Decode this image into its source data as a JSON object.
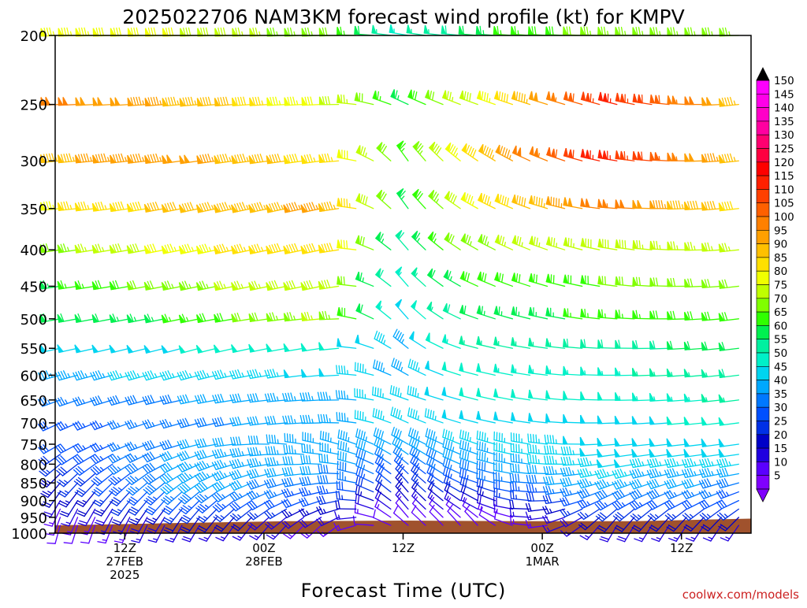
{
  "page": {
    "credit": "coolwx.com/models",
    "credit_color": "#cc2222"
  },
  "chart_data": {
    "type": "wind-barb-time-height",
    "title": "2025022706 NAM3KM forecast wind profile (kt) for KMPV",
    "xlabel": "Forecast Time (UTC)",
    "ylabel": "",
    "x_unit": "forecast hour",
    "xlim": [
      0,
      60
    ],
    "y_unit": "hPa",
    "ylim": [
      1000,
      200
    ],
    "y_scale": "log",
    "y_ticks": [
      200,
      250,
      300,
      350,
      400,
      450,
      500,
      550,
      600,
      650,
      700,
      750,
      800,
      850,
      900,
      950,
      1000
    ],
    "x_ticks": [
      {
        "x": 6,
        "lines": [
          "12Z",
          "27FEB",
          "2025"
        ]
      },
      {
        "x": 18,
        "lines": [
          "00Z",
          "28FEB"
        ]
      },
      {
        "x": 30,
        "lines": [
          "12Z"
        ]
      },
      {
        "x": 42,
        "lines": [
          "00Z",
          "1MAR"
        ]
      },
      {
        "x": 54,
        "lines": [
          "12Z"
        ]
      }
    ],
    "surface_color": "#a0522d",
    "surface_pressure": [
      {
        "x": 0,
        "p": 975
      },
      {
        "x": 10,
        "p": 968
      },
      {
        "x": 20,
        "p": 962
      },
      {
        "x": 30,
        "p": 960
      },
      {
        "x": 40,
        "p": 962
      },
      {
        "x": 50,
        "p": 962
      },
      {
        "x": 60,
        "p": 954
      }
    ],
    "colorbar": {
      "levels": [
        5,
        10,
        15,
        20,
        25,
        30,
        35,
        40,
        45,
        50,
        55,
        60,
        65,
        70,
        75,
        80,
        85,
        90,
        95,
        100,
        105,
        110,
        115,
        120,
        125,
        130,
        135,
        140,
        145,
        150
      ],
      "colors": [
        "#8000ff",
        "#5a00ff",
        "#2000e0",
        "#0000c8",
        "#0030e6",
        "#0050ff",
        "#0078ff",
        "#00a8ff",
        "#00d4f0",
        "#00f0c8",
        "#00f0a0",
        "#00f050",
        "#30ff00",
        "#80ff00",
        "#c0ff00",
        "#f0ff00",
        "#ffe000",
        "#ffc000",
        "#ffa000",
        "#ff8000",
        "#ff6000",
        "#ff4000",
        "#ff2000",
        "#ff0000",
        "#ff0040",
        "#ff0070",
        "#ff00a0",
        "#ff00c8",
        "#ff00e8",
        "#ff00ff"
      ],
      "extend_max_color": "#000000",
      "extend_min_color": "#8000ff"
    },
    "levels_hpa": [
      1000,
      975,
      950,
      925,
      900,
      875,
      850,
      825,
      800,
      775,
      750,
      700,
      650,
      600,
      550,
      500,
      450,
      400,
      350,
      300,
      250,
      200
    ],
    "profiles": {
      "1000": [
        {
          "x": 0,
          "spd": 8,
          "dir": 190
        },
        {
          "x": 12,
          "spd": 14,
          "dir": 205
        },
        {
          "x": 24,
          "spd": 12,
          "dir": 220
        },
        {
          "x": 30,
          "spd": 8,
          "dir": 300
        },
        {
          "x": 36,
          "spd": 8,
          "dir": 320
        },
        {
          "x": 48,
          "spd": 14,
          "dir": 200
        },
        {
          "x": 60,
          "spd": 12,
          "dir": 210
        }
      ],
      "975": [
        {
          "x": 0,
          "spd": 10,
          "dir": 195
        },
        {
          "x": 12,
          "spd": 18,
          "dir": 210
        },
        {
          "x": 24,
          "spd": 14,
          "dir": 230
        },
        {
          "x": 30,
          "spd": 10,
          "dir": 310
        },
        {
          "x": 36,
          "spd": 10,
          "dir": 320
        },
        {
          "x": 48,
          "spd": 18,
          "dir": 210
        },
        {
          "x": 60,
          "spd": 16,
          "dir": 215
        }
      ],
      "950": [
        {
          "x": 0,
          "spd": 12,
          "dir": 200
        },
        {
          "x": 12,
          "spd": 22,
          "dir": 215
        },
        {
          "x": 24,
          "spd": 18,
          "dir": 240
        },
        {
          "x": 30,
          "spd": 12,
          "dir": 320
        },
        {
          "x": 36,
          "spd": 12,
          "dir": 310
        },
        {
          "x": 48,
          "spd": 22,
          "dir": 220
        },
        {
          "x": 60,
          "spd": 20,
          "dir": 225
        }
      ],
      "925": [
        {
          "x": 0,
          "spd": 14,
          "dir": 205
        },
        {
          "x": 12,
          "spd": 28,
          "dir": 220
        },
        {
          "x": 24,
          "spd": 24,
          "dir": 250
        },
        {
          "x": 30,
          "spd": 16,
          "dir": 320
        },
        {
          "x": 36,
          "spd": 16,
          "dir": 300
        },
        {
          "x": 48,
          "spd": 28,
          "dir": 230
        },
        {
          "x": 60,
          "spd": 26,
          "dir": 235
        }
      ],
      "900": [
        {
          "x": 0,
          "spd": 18,
          "dir": 210
        },
        {
          "x": 12,
          "spd": 34,
          "dir": 225
        },
        {
          "x": 24,
          "spd": 30,
          "dir": 255
        },
        {
          "x": 30,
          "spd": 20,
          "dir": 320
        },
        {
          "x": 36,
          "spd": 22,
          "dir": 300
        },
        {
          "x": 48,
          "spd": 34,
          "dir": 240
        },
        {
          "x": 60,
          "spd": 30,
          "dir": 245
        }
      ],
      "875": [
        {
          "x": 0,
          "spd": 20,
          "dir": 215
        },
        {
          "x": 12,
          "spd": 38,
          "dir": 230
        },
        {
          "x": 24,
          "spd": 34,
          "dir": 260
        },
        {
          "x": 30,
          "spd": 24,
          "dir": 320
        },
        {
          "x": 36,
          "spd": 28,
          "dir": 295
        },
        {
          "x": 48,
          "spd": 40,
          "dir": 245
        },
        {
          "x": 60,
          "spd": 34,
          "dir": 250
        }
      ],
      "850": [
        {
          "x": 0,
          "spd": 22,
          "dir": 220
        },
        {
          "x": 12,
          "spd": 42,
          "dir": 235
        },
        {
          "x": 24,
          "spd": 38,
          "dir": 265
        },
        {
          "x": 30,
          "spd": 28,
          "dir": 320
        },
        {
          "x": 36,
          "spd": 34,
          "dir": 290
        },
        {
          "x": 48,
          "spd": 44,
          "dir": 250
        },
        {
          "x": 60,
          "spd": 38,
          "dir": 255
        }
      ],
      "825": [
        {
          "x": 0,
          "spd": 24,
          "dir": 225
        },
        {
          "x": 12,
          "spd": 44,
          "dir": 240
        },
        {
          "x": 24,
          "spd": 40,
          "dir": 270
        },
        {
          "x": 30,
          "spd": 32,
          "dir": 315
        },
        {
          "x": 36,
          "spd": 38,
          "dir": 290
        },
        {
          "x": 48,
          "spd": 46,
          "dir": 255
        },
        {
          "x": 60,
          "spd": 42,
          "dir": 260
        }
      ],
      "800": [
        {
          "x": 0,
          "spd": 26,
          "dir": 230
        },
        {
          "x": 12,
          "spd": 44,
          "dir": 245
        },
        {
          "x": 24,
          "spd": 42,
          "dir": 275
        },
        {
          "x": 30,
          "spd": 36,
          "dir": 310
        },
        {
          "x": 36,
          "spd": 42,
          "dir": 290
        },
        {
          "x": 48,
          "spd": 48,
          "dir": 260
        },
        {
          "x": 60,
          "spd": 46,
          "dir": 260
        }
      ],
      "775": [
        {
          "x": 0,
          "spd": 28,
          "dir": 235
        },
        {
          "x": 12,
          "spd": 42,
          "dir": 250
        },
        {
          "x": 24,
          "spd": 44,
          "dir": 280
        },
        {
          "x": 30,
          "spd": 40,
          "dir": 305
        },
        {
          "x": 36,
          "spd": 44,
          "dir": 290
        },
        {
          "x": 48,
          "spd": 48,
          "dir": 262
        },
        {
          "x": 60,
          "spd": 48,
          "dir": 262
        }
      ],
      "750": [
        {
          "x": 0,
          "spd": 30,
          "dir": 240
        },
        {
          "x": 12,
          "spd": 40,
          "dir": 255
        },
        {
          "x": 24,
          "spd": 44,
          "dir": 285
        },
        {
          "x": 30,
          "spd": 42,
          "dir": 300
        },
        {
          "x": 36,
          "spd": 46,
          "dir": 290
        },
        {
          "x": 48,
          "spd": 48,
          "dir": 265
        },
        {
          "x": 60,
          "spd": 50,
          "dir": 262
        }
      ],
      "700": [
        {
          "x": 0,
          "spd": 32,
          "dir": 245
        },
        {
          "x": 12,
          "spd": 38,
          "dir": 255
        },
        {
          "x": 24,
          "spd": 44,
          "dir": 270
        },
        {
          "x": 30,
          "spd": 46,
          "dir": 295
        },
        {
          "x": 36,
          "spd": 48,
          "dir": 285
        },
        {
          "x": 48,
          "spd": 48,
          "dir": 268
        },
        {
          "x": 60,
          "spd": 52,
          "dir": 262
        }
      ],
      "650": [
        {
          "x": 0,
          "spd": 36,
          "dir": 250
        },
        {
          "x": 12,
          "spd": 40,
          "dir": 258
        },
        {
          "x": 24,
          "spd": 44,
          "dir": 268
        },
        {
          "x": 30,
          "spd": 46,
          "dir": 290
        },
        {
          "x": 36,
          "spd": 50,
          "dir": 285
        },
        {
          "x": 48,
          "spd": 52,
          "dir": 270
        },
        {
          "x": 60,
          "spd": 56,
          "dir": 262
        }
      ],
      "600": [
        {
          "x": 0,
          "spd": 44,
          "dir": 255
        },
        {
          "x": 12,
          "spd": 46,
          "dir": 255
        },
        {
          "x": 24,
          "spd": 48,
          "dir": 265
        },
        {
          "x": 30,
          "spd": 44,
          "dir": 300
        },
        {
          "x": 36,
          "spd": 52,
          "dir": 285
        },
        {
          "x": 48,
          "spd": 54,
          "dir": 270
        },
        {
          "x": 60,
          "spd": 58,
          "dir": 262
        }
      ],
      "550": [
        {
          "x": 0,
          "spd": 48,
          "dir": 258
        },
        {
          "x": 12,
          "spd": 50,
          "dir": 255
        },
        {
          "x": 24,
          "spd": 52,
          "dir": 262
        },
        {
          "x": 30,
          "spd": 44,
          "dir": 310
        },
        {
          "x": 36,
          "spd": 56,
          "dir": 285
        },
        {
          "x": 48,
          "spd": 58,
          "dir": 272
        },
        {
          "x": 60,
          "spd": 62,
          "dir": 262
        }
      ],
      "500": [
        {
          "x": 0,
          "spd": 60,
          "dir": 260
        },
        {
          "x": 12,
          "spd": 66,
          "dir": 258
        },
        {
          "x": 24,
          "spd": 76,
          "dir": 265
        },
        {
          "x": 30,
          "spd": 48,
          "dir": 320
        },
        {
          "x": 36,
          "spd": 62,
          "dir": 290
        },
        {
          "x": 48,
          "spd": 66,
          "dir": 275
        },
        {
          "x": 60,
          "spd": 70,
          "dir": 262
        }
      ],
      "450": [
        {
          "x": 0,
          "spd": 64,
          "dir": 262
        },
        {
          "x": 12,
          "spd": 74,
          "dir": 258
        },
        {
          "x": 24,
          "spd": 80,
          "dir": 258
        },
        {
          "x": 30,
          "spd": 52,
          "dir": 320
        },
        {
          "x": 36,
          "spd": 68,
          "dir": 295
        },
        {
          "x": 48,
          "spd": 70,
          "dir": 278
        },
        {
          "x": 60,
          "spd": 72,
          "dir": 262
        }
      ],
      "400": [
        {
          "x": 0,
          "spd": 72,
          "dir": 262
        },
        {
          "x": 12,
          "spd": 84,
          "dir": 258
        },
        {
          "x": 24,
          "spd": 90,
          "dir": 258
        },
        {
          "x": 30,
          "spd": 58,
          "dir": 320
        },
        {
          "x": 36,
          "spd": 74,
          "dir": 300
        },
        {
          "x": 48,
          "spd": 78,
          "dir": 280
        },
        {
          "x": 60,
          "spd": 76,
          "dir": 262
        }
      ],
      "350": [
        {
          "x": 0,
          "spd": 84,
          "dir": 265
        },
        {
          "x": 12,
          "spd": 92,
          "dir": 258
        },
        {
          "x": 24,
          "spd": 96,
          "dir": 258
        },
        {
          "x": 30,
          "spd": 64,
          "dir": 325
        },
        {
          "x": 36,
          "spd": 82,
          "dir": 300
        },
        {
          "x": 48,
          "spd": 104,
          "dir": 275
        },
        {
          "x": 60,
          "spd": 86,
          "dir": 262
        }
      ],
      "300": [
        {
          "x": 0,
          "spd": 94,
          "dir": 265
        },
        {
          "x": 12,
          "spd": 98,
          "dir": 262
        },
        {
          "x": 24,
          "spd": 86,
          "dir": 262
        },
        {
          "x": 30,
          "spd": 66,
          "dir": 325
        },
        {
          "x": 36,
          "spd": 88,
          "dir": 305
        },
        {
          "x": 48,
          "spd": 118,
          "dir": 280
        },
        {
          "x": 60,
          "spd": 90,
          "dir": 262
        }
      ],
      "250": [
        {
          "x": 0,
          "spd": 102,
          "dir": 268
        },
        {
          "x": 12,
          "spd": 94,
          "dir": 265
        },
        {
          "x": 24,
          "spd": 80,
          "dir": 268
        },
        {
          "x": 30,
          "spd": 64,
          "dir": 295
        },
        {
          "x": 36,
          "spd": 78,
          "dir": 290
        },
        {
          "x": 48,
          "spd": 118,
          "dir": 285
        },
        {
          "x": 60,
          "spd": 92,
          "dir": 262
        }
      ],
      "200": [
        {
          "x": 0,
          "spd": 84,
          "dir": 268
        },
        {
          "x": 12,
          "spd": 80,
          "dir": 268
        },
        {
          "x": 24,
          "spd": 72,
          "dir": 268
        },
        {
          "x": 30,
          "spd": 52,
          "dir": 280
        },
        {
          "x": 36,
          "spd": 62,
          "dir": 275
        },
        {
          "x": 48,
          "spd": 74,
          "dir": 272
        },
        {
          "x": 60,
          "spd": 74,
          "dir": 268
        }
      ]
    },
    "barb_time_step_hr": 1.5
  }
}
